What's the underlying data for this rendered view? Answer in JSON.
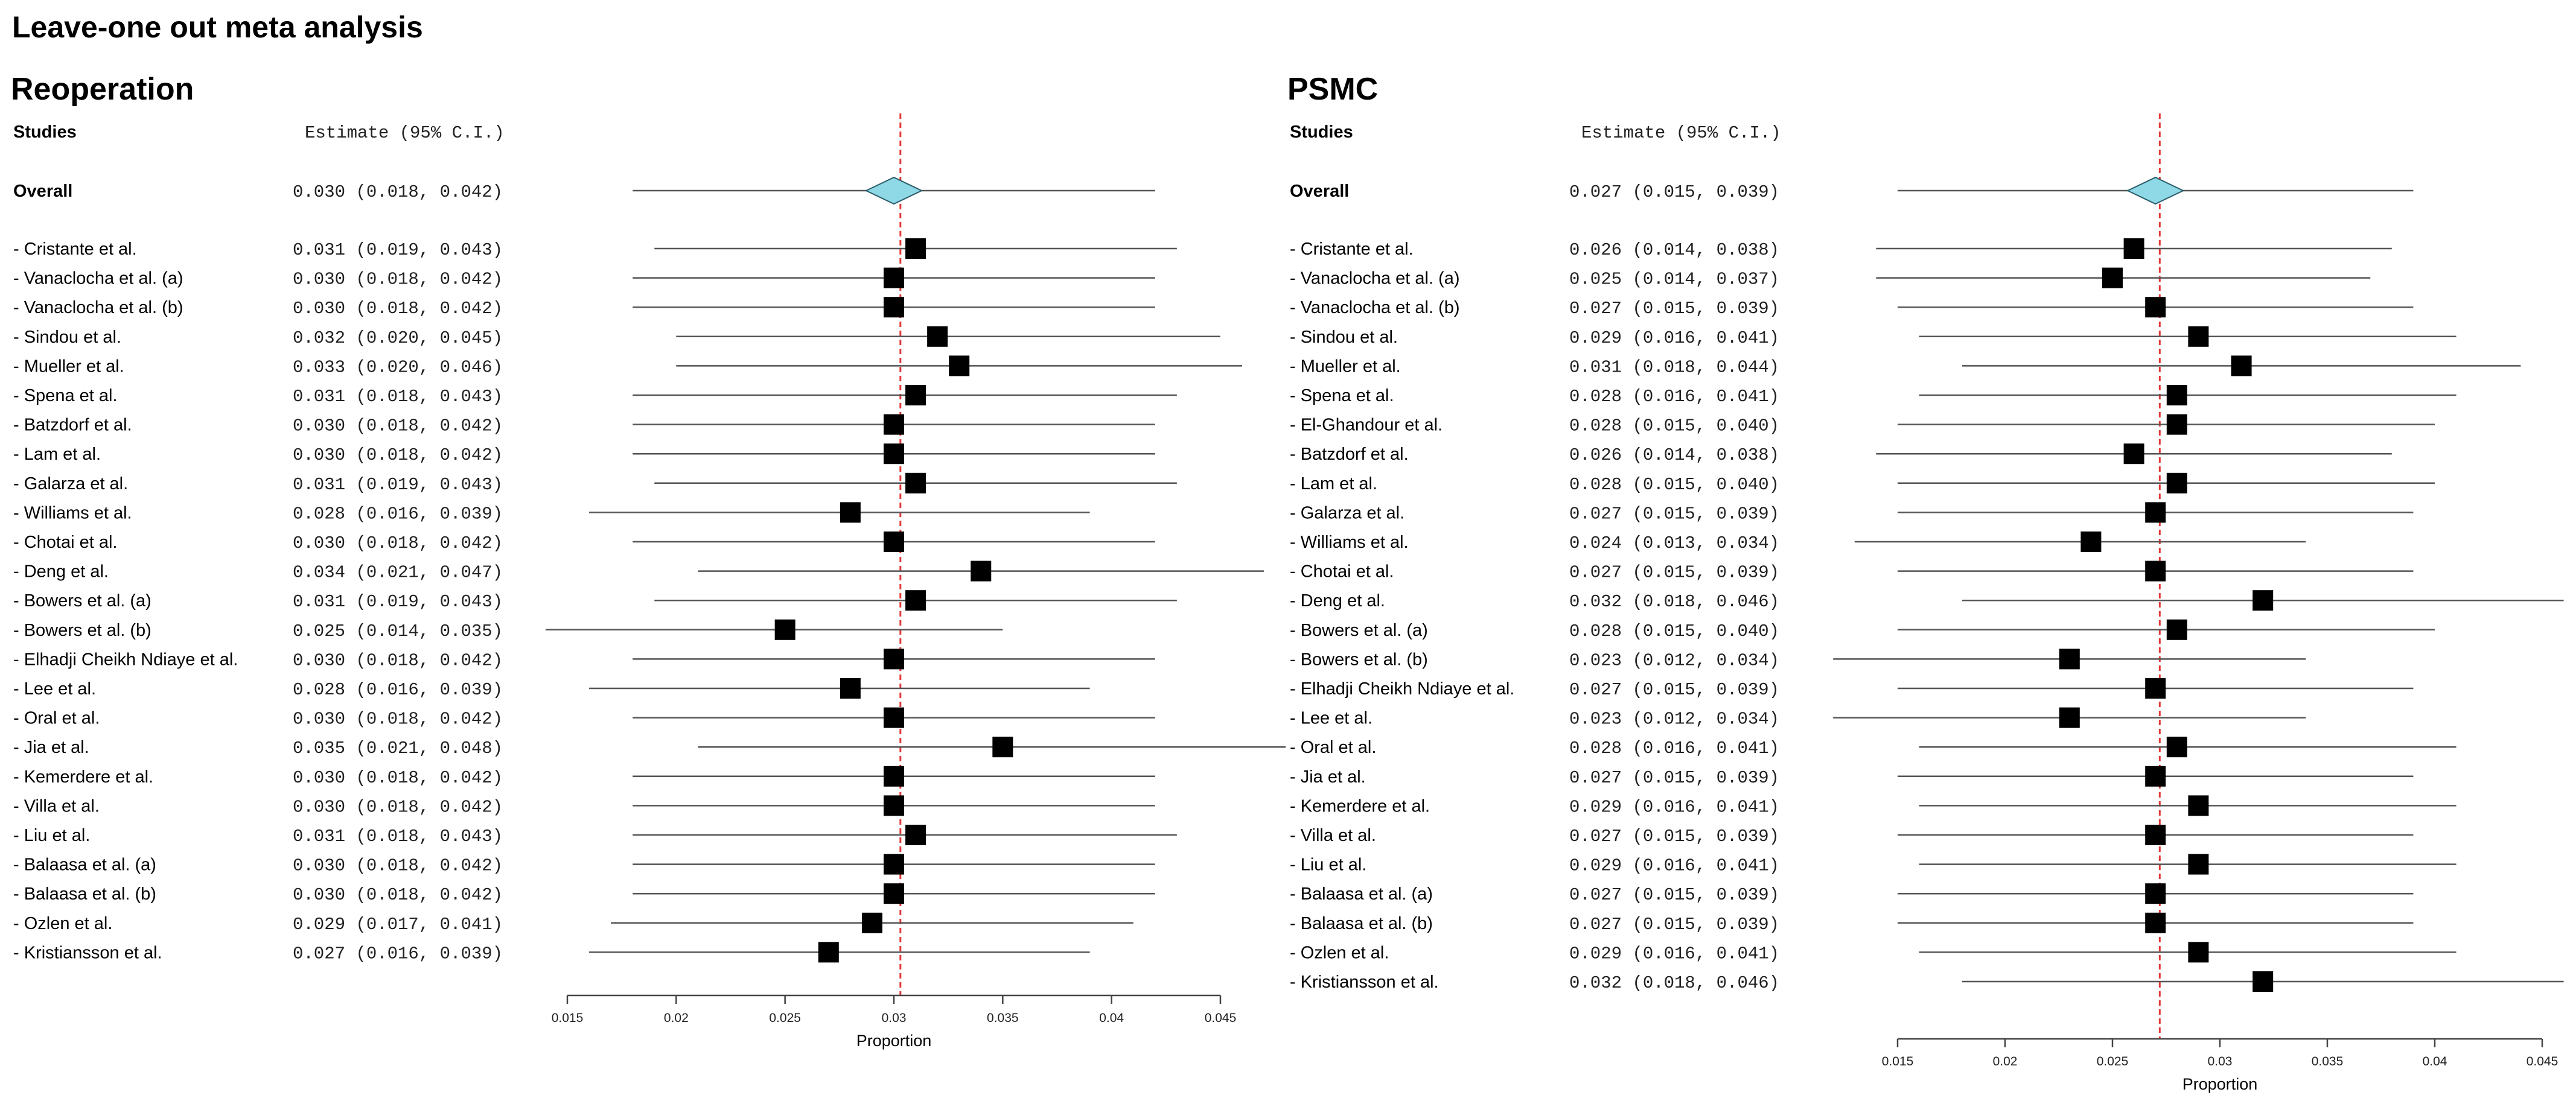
{
  "page_title": "Leave-one out meta analysis",
  "chart_data": [
    {
      "type": "forest",
      "title": "Reoperation",
      "col_studies": "Studies",
      "col_estimate": "Estimate (95% C.I.)",
      "xlabel": "Proportion",
      "xlim": [
        0.015,
        0.045
      ],
      "ticks": [
        "0.015",
        "0.02",
        "0.025",
        "0.03",
        "0.035",
        "0.04",
        "0.045"
      ],
      "reference_line": 0.0303,
      "overall": {
        "label": "Overall",
        "estimate": 0.03,
        "lower": 0.018,
        "upper": 0.042,
        "text": "0.030 (0.018, 0.042)"
      },
      "rows": [
        {
          "label": "- Cristante et al.",
          "estimate": 0.031,
          "lower": 0.019,
          "upper": 0.043,
          "text": "0.031 (0.019, 0.043)"
        },
        {
          "label": "- Vanaclocha et al. (a)",
          "estimate": 0.03,
          "lower": 0.018,
          "upper": 0.042,
          "text": "0.030 (0.018, 0.042)"
        },
        {
          "label": "- Vanaclocha et al. (b)",
          "estimate": 0.03,
          "lower": 0.018,
          "upper": 0.042,
          "text": "0.030 (0.018, 0.042)"
        },
        {
          "label": "- Sindou et al.",
          "estimate": 0.032,
          "lower": 0.02,
          "upper": 0.045,
          "text": "0.032 (0.020, 0.045)"
        },
        {
          "label": "- Mueller et al.",
          "estimate": 0.033,
          "lower": 0.02,
          "upper": 0.046,
          "text": "0.033 (0.020, 0.046)"
        },
        {
          "label": "- Spena et al.",
          "estimate": 0.031,
          "lower": 0.018,
          "upper": 0.043,
          "text": "0.031 (0.018, 0.043)"
        },
        {
          "label": "- Batzdorf et al.",
          "estimate": 0.03,
          "lower": 0.018,
          "upper": 0.042,
          "text": "0.030 (0.018, 0.042)"
        },
        {
          "label": "- Lam et al.",
          "estimate": 0.03,
          "lower": 0.018,
          "upper": 0.042,
          "text": "0.030 (0.018, 0.042)"
        },
        {
          "label": "- Galarza et al.",
          "estimate": 0.031,
          "lower": 0.019,
          "upper": 0.043,
          "text": "0.031 (0.019, 0.043)"
        },
        {
          "label": "- Williams et al.",
          "estimate": 0.028,
          "lower": 0.016,
          "upper": 0.039,
          "text": "0.028 (0.016, 0.039)"
        },
        {
          "label": "- Chotai et al.",
          "estimate": 0.03,
          "lower": 0.018,
          "upper": 0.042,
          "text": "0.030 (0.018, 0.042)"
        },
        {
          "label": "- Deng et al.",
          "estimate": 0.034,
          "lower": 0.021,
          "upper": 0.047,
          "text": "0.034 (0.021, 0.047)"
        },
        {
          "label": "- Bowers et al. (a)",
          "estimate": 0.031,
          "lower": 0.019,
          "upper": 0.043,
          "text": "0.031 (0.019, 0.043)"
        },
        {
          "label": "- Bowers et al. (b)",
          "estimate": 0.025,
          "lower": 0.014,
          "upper": 0.035,
          "text": "0.025 (0.014, 0.035)"
        },
        {
          "label": "- Elhadji Cheikh Ndiaye et al.",
          "estimate": 0.03,
          "lower": 0.018,
          "upper": 0.042,
          "text": "0.030 (0.018, 0.042)"
        },
        {
          "label": "- Lee et al.",
          "estimate": 0.028,
          "lower": 0.016,
          "upper": 0.039,
          "text": "0.028 (0.016, 0.039)"
        },
        {
          "label": "- Oral et al.",
          "estimate": 0.03,
          "lower": 0.018,
          "upper": 0.042,
          "text": "0.030 (0.018, 0.042)"
        },
        {
          "label": "- Jia et al.",
          "estimate": 0.035,
          "lower": 0.021,
          "upper": 0.048,
          "text": "0.035 (0.021, 0.048)"
        },
        {
          "label": "- Kemerdere et al.",
          "estimate": 0.03,
          "lower": 0.018,
          "upper": 0.042,
          "text": "0.030 (0.018, 0.042)"
        },
        {
          "label": "- Villa et al.",
          "estimate": 0.03,
          "lower": 0.018,
          "upper": 0.042,
          "text": "0.030 (0.018, 0.042)"
        },
        {
          "label": "- Liu et al.",
          "estimate": 0.031,
          "lower": 0.018,
          "upper": 0.043,
          "text": "0.031 (0.018, 0.043)"
        },
        {
          "label": "- Balaasa et al. (a)",
          "estimate": 0.03,
          "lower": 0.018,
          "upper": 0.042,
          "text": "0.030 (0.018, 0.042)"
        },
        {
          "label": "- Balaasa et al. (b)",
          "estimate": 0.03,
          "lower": 0.018,
          "upper": 0.042,
          "text": "0.030 (0.018, 0.042)"
        },
        {
          "label": "- Ozlen et al.",
          "estimate": 0.029,
          "lower": 0.017,
          "upper": 0.041,
          "text": "0.029 (0.017, 0.041)"
        },
        {
          "label": "- Kristiansson et al.",
          "estimate": 0.027,
          "lower": 0.016,
          "upper": 0.039,
          "text": "0.027 (0.016, 0.039)"
        }
      ]
    },
    {
      "type": "forest",
      "title": "PSMC",
      "col_studies": "Studies",
      "col_estimate": "Estimate (95% C.I.)",
      "xlabel": "Proportion",
      "xlim": [
        0.015,
        0.045
      ],
      "ticks": [
        "0.015",
        "0.02",
        "0.025",
        "0.03",
        "0.035",
        "0.04",
        "0.045"
      ],
      "reference_line": 0.0272,
      "overall": {
        "label": "Overall",
        "estimate": 0.027,
        "lower": 0.015,
        "upper": 0.039,
        "text": "0.027 (0.015, 0.039)"
      },
      "rows": [
        {
          "label": "- Cristante et al.",
          "estimate": 0.026,
          "lower": 0.014,
          "upper": 0.038,
          "text": "0.026 (0.014, 0.038)"
        },
        {
          "label": "- Vanaclocha et al. (a)",
          "estimate": 0.025,
          "lower": 0.014,
          "upper": 0.037,
          "text": "0.025 (0.014, 0.037)"
        },
        {
          "label": "- Vanaclocha et al. (b)",
          "estimate": 0.027,
          "lower": 0.015,
          "upper": 0.039,
          "text": "0.027 (0.015, 0.039)"
        },
        {
          "label": "- Sindou et al.",
          "estimate": 0.029,
          "lower": 0.016,
          "upper": 0.041,
          "text": "0.029 (0.016, 0.041)"
        },
        {
          "label": "- Mueller et al.",
          "estimate": 0.031,
          "lower": 0.018,
          "upper": 0.044,
          "text": "0.031 (0.018, 0.044)"
        },
        {
          "label": "- Spena et al.",
          "estimate": 0.028,
          "lower": 0.016,
          "upper": 0.041,
          "text": "0.028 (0.016, 0.041)"
        },
        {
          "label": "- El-Ghandour et al.",
          "estimate": 0.028,
          "lower": 0.015,
          "upper": 0.04,
          "text": "0.028 (0.015, 0.040)"
        },
        {
          "label": "- Batzdorf et al.",
          "estimate": 0.026,
          "lower": 0.014,
          "upper": 0.038,
          "text": "0.026 (0.014, 0.038)"
        },
        {
          "label": "- Lam et al.",
          "estimate": 0.028,
          "lower": 0.015,
          "upper": 0.04,
          "text": "0.028 (0.015, 0.040)"
        },
        {
          "label": "- Galarza et al.",
          "estimate": 0.027,
          "lower": 0.015,
          "upper": 0.039,
          "text": "0.027 (0.015, 0.039)"
        },
        {
          "label": "- Williams et al.",
          "estimate": 0.024,
          "lower": 0.013,
          "upper": 0.034,
          "text": "0.024 (0.013, 0.034)"
        },
        {
          "label": "- Chotai et al.",
          "estimate": 0.027,
          "lower": 0.015,
          "upper": 0.039,
          "text": "0.027 (0.015, 0.039)"
        },
        {
          "label": "- Deng et al.",
          "estimate": 0.032,
          "lower": 0.018,
          "upper": 0.046,
          "text": "0.032 (0.018, 0.046)"
        },
        {
          "label": "- Bowers et al. (a)",
          "estimate": 0.028,
          "lower": 0.015,
          "upper": 0.04,
          "text": "0.028 (0.015, 0.040)"
        },
        {
          "label": "- Bowers et al. (b)",
          "estimate": 0.023,
          "lower": 0.012,
          "upper": 0.034,
          "text": "0.023 (0.012, 0.034)"
        },
        {
          "label": "- Elhadji Cheikh Ndiaye et al.",
          "estimate": 0.027,
          "lower": 0.015,
          "upper": 0.039,
          "text": "0.027 (0.015, 0.039)"
        },
        {
          "label": "- Lee et al.",
          "estimate": 0.023,
          "lower": 0.012,
          "upper": 0.034,
          "text": "0.023 (0.012, 0.034)"
        },
        {
          "label": "- Oral et al.",
          "estimate": 0.028,
          "lower": 0.016,
          "upper": 0.041,
          "text": "0.028 (0.016, 0.041)"
        },
        {
          "label": "- Jia et al.",
          "estimate": 0.027,
          "lower": 0.015,
          "upper": 0.039,
          "text": "0.027 (0.015, 0.039)"
        },
        {
          "label": "- Kemerdere et al.",
          "estimate": 0.029,
          "lower": 0.016,
          "upper": 0.041,
          "text": "0.029 (0.016, 0.041)"
        },
        {
          "label": "- Villa et al.",
          "estimate": 0.027,
          "lower": 0.015,
          "upper": 0.039,
          "text": "0.027 (0.015, 0.039)"
        },
        {
          "label": "- Liu et al.",
          "estimate": 0.029,
          "lower": 0.016,
          "upper": 0.041,
          "text": "0.029 (0.016, 0.041)"
        },
        {
          "label": "- Balaasa et al. (a)",
          "estimate": 0.027,
          "lower": 0.015,
          "upper": 0.039,
          "text": "0.027 (0.015, 0.039)"
        },
        {
          "label": "- Balaasa et al. (b)",
          "estimate": 0.027,
          "lower": 0.015,
          "upper": 0.039,
          "text": "0.027 (0.015, 0.039)"
        },
        {
          "label": "- Ozlen et al.",
          "estimate": 0.029,
          "lower": 0.016,
          "upper": 0.041,
          "text": "0.029 (0.016, 0.041)"
        },
        {
          "label": "- Kristiansson et al.",
          "estimate": 0.032,
          "lower": 0.018,
          "upper": 0.046,
          "text": "0.032 (0.018, 0.046)"
        }
      ]
    }
  ]
}
